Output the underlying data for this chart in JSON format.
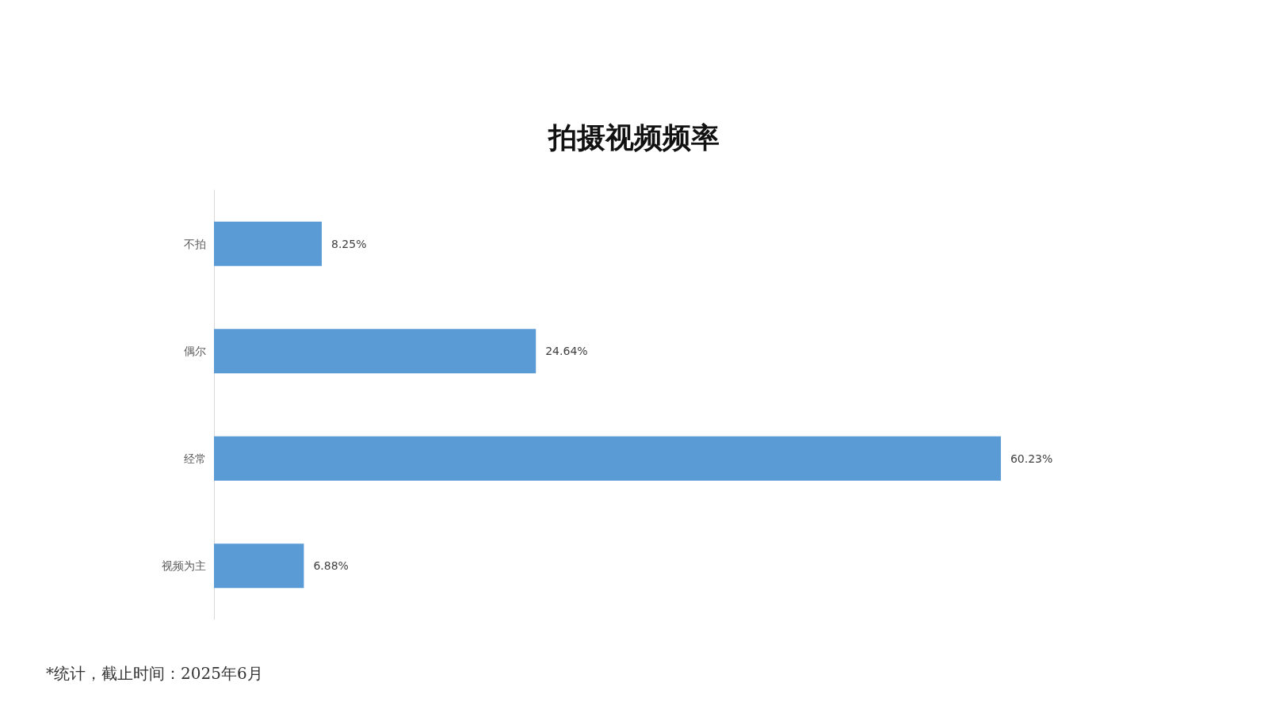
{
  "chart_data": {
    "type": "bar",
    "orientation": "horizontal",
    "title": "拍摄视频频率",
    "categories": [
      "不拍",
      "偶尔",
      "经常",
      "视频为主"
    ],
    "values": [
      8.25,
      24.64,
      60.23,
      6.88
    ],
    "value_labels": [
      "8.25%",
      "24.64%",
      "60.23%",
      "6.88%"
    ],
    "color": "#5b9bd5",
    "annotations": [
      "*统计，截止时间：2025年6月"
    ]
  }
}
